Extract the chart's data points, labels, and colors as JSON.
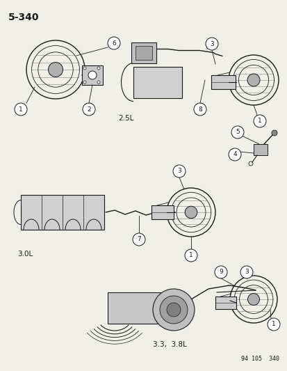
{
  "bg_color": "#f0efe8",
  "title": "5-340",
  "footer": "94 105  340",
  "label_25L": "2.5L",
  "label_30L": "3.0L",
  "label_338L": "3.3,  3.8L",
  "line_color": "#1a1a1a",
  "line_width": 0.8,
  "font_size_title": 10,
  "font_size_label": 7.5,
  "font_size_num": 6.5,
  "font_size_footer": 6
}
